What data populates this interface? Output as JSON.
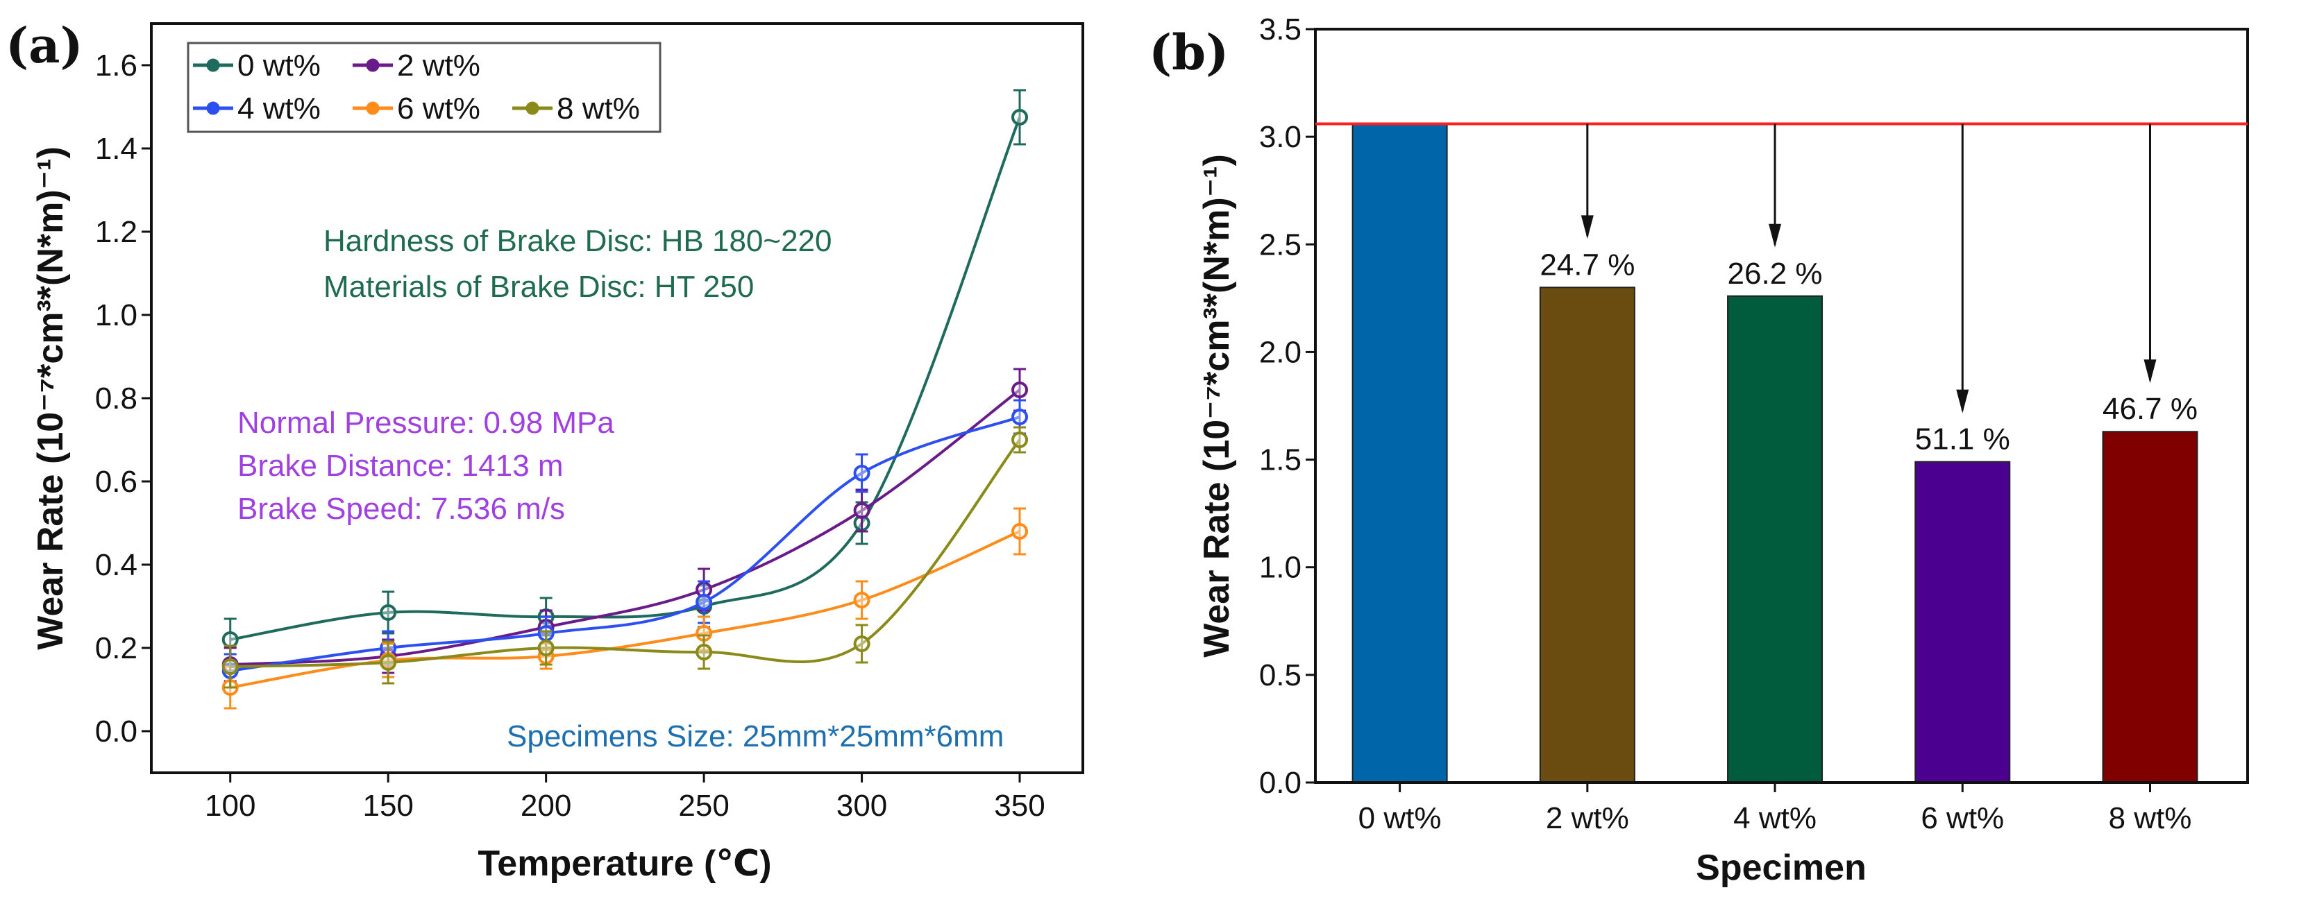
{
  "panel_labels": {
    "a": "(a)",
    "b": "(b)"
  },
  "chart_data": [
    {
      "type": "line",
      "panel": "(a)",
      "xlabel": "Temperature (℃)",
      "ylabel": "Wear Rate (10⁻⁷*cm³*(N*m)⁻¹)",
      "x": [
        100,
        150,
        200,
        250,
        300,
        350
      ],
      "xticks": [
        "100",
        "150",
        "200",
        "250",
        "300",
        "350"
      ],
      "yticks": [
        "0.0",
        "0.2",
        "0.4",
        "0.6",
        "0.8",
        "1.0",
        "1.2",
        "1.4",
        "1.6"
      ],
      "xlim": [
        75,
        370
      ],
      "ylim": [
        -0.1,
        1.7
      ],
      "legend_position": "top-left",
      "series": [
        {
          "name": "0 wt%",
          "color": "#1e6b5e",
          "values": [
            0.22,
            0.285,
            0.275,
            0.3,
            0.5,
            1.475
          ],
          "errors": [
            0.05,
            0.05,
            0.045,
            0.05,
            0.05,
            0.065
          ]
        },
        {
          "name": "2 wt%",
          "color": "#6a1b8a",
          "values": [
            0.16,
            0.18,
            0.25,
            0.34,
            0.53,
            0.82
          ],
          "errors": [
            0.04,
            0.04,
            0.04,
            0.05,
            0.05,
            0.05
          ]
        },
        {
          "name": "4 wt%",
          "color": "#2b4ff0",
          "values": [
            0.145,
            0.2,
            0.235,
            0.31,
            0.62,
            0.755
          ],
          "errors": [
            0.04,
            0.04,
            0.04,
            0.05,
            0.045,
            0.04
          ]
        },
        {
          "name": "6 wt%",
          "color": "#ff8c1a",
          "values": [
            0.105,
            0.17,
            0.18,
            0.235,
            0.315,
            0.48
          ],
          "errors": [
            0.05,
            0.04,
            0.03,
            0.04,
            0.045,
            0.055
          ]
        },
        {
          "name": "8 wt%",
          "color": "#8a8a1a",
          "values": [
            0.155,
            0.165,
            0.2,
            0.19,
            0.21,
            0.7
          ],
          "errors": [
            0.05,
            0.05,
            0.04,
            0.04,
            0.045,
            0.03
          ]
        }
      ],
      "annotations": [
        {
          "text": "Hardness of Brake Disc: HB 180~220",
          "color": "#1f6b50"
        },
        {
          "text": "Materials of Brake Disc: HT 250",
          "color": "#1f6b50"
        },
        {
          "text": "Normal Pressure: 0.98 MPa",
          "color": "#a040e0"
        },
        {
          "text": "Brake Distance: 1413 m",
          "color": "#a040e0"
        },
        {
          "text": "Brake Speed: 7.536 m/s",
          "color": "#a040e0"
        },
        {
          "text": "Specimens Size: 25mm*25mm*6mm",
          "color": "#1e6fae"
        }
      ]
    },
    {
      "type": "bar",
      "panel": "(b)",
      "xlabel": "Specimen",
      "ylabel": "Wear Rate (10⁻⁷*cm³*(N*m)⁻¹)",
      "categories": [
        "0 wt%",
        "2 wt%",
        "4 wt%",
        "6 wt%",
        "8 wt%"
      ],
      "values": [
        3.06,
        2.3,
        2.26,
        1.49,
        1.63
      ],
      "colors": [
        "#0066aa",
        "#6b4c10",
        "#005c3c",
        "#4b0090",
        "#800000"
      ],
      "reduction_labels": [
        "",
        "24.7 %",
        "26.2 %",
        "51.1 %",
        "46.7 %"
      ],
      "reference_line": {
        "value": 3.06,
        "color": "#ff2020"
      },
      "yticks": [
        "0.0",
        "0.5",
        "1.0",
        "1.5",
        "2.0",
        "2.5",
        "3.0",
        "3.5"
      ],
      "ylim": [
        0,
        3.5
      ],
      "xlim": [
        -0.45,
        4.52
      ]
    }
  ]
}
